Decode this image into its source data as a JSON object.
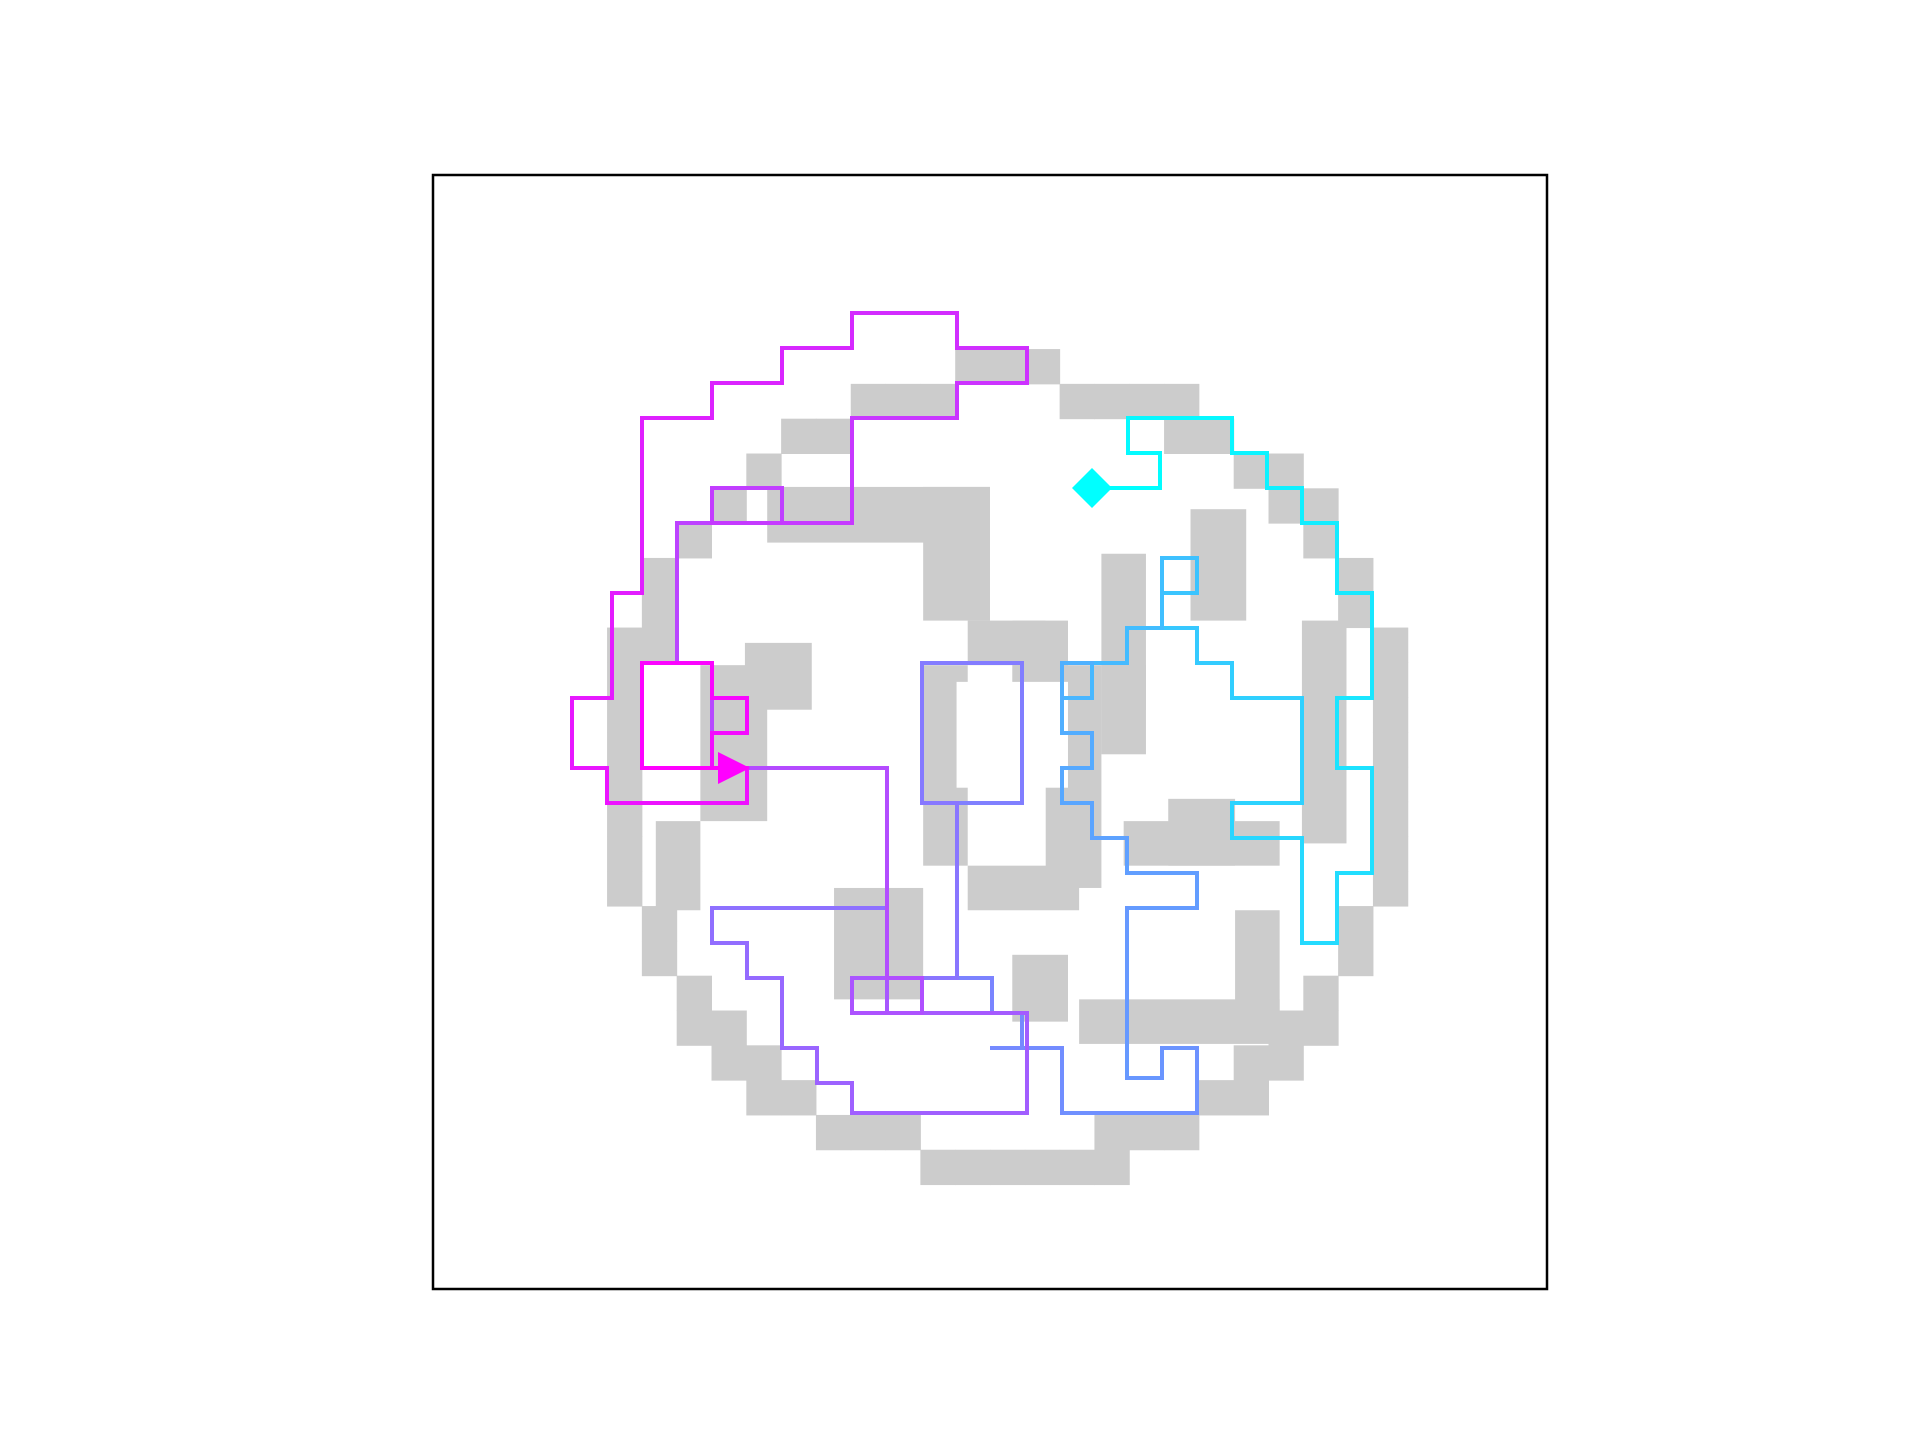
{
  "colors": {
    "background": "#ffffff",
    "frame": "#000000",
    "walls": "#cccccc",
    "path_start": "#00ffff",
    "path_end": "#ff00ff",
    "start_marker": "#00ffff",
    "end_marker": "#ff00ff"
  },
  "maze": {
    "shape": "circular",
    "grid_cells": 32,
    "start_marker": "diamond",
    "end_marker": "triangle-right",
    "path_gradient": "cyan-to-magenta"
  }
}
